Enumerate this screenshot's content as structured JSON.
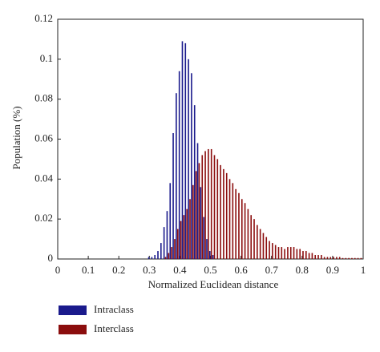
{
  "chart_data": {
    "type": "bar",
    "xlabel": "Normalized Euclidean distance",
    "ylabel": "Population (%)",
    "x": [
      0.3,
      0.31,
      0.32,
      0.33,
      0.34,
      0.35,
      0.36,
      0.37,
      0.38,
      0.39,
      0.4,
      0.41,
      0.42,
      0.43,
      0.44,
      0.45,
      0.46,
      0.47,
      0.48,
      0.49,
      0.5,
      0.51,
      0.52,
      0.53,
      0.54,
      0.55,
      0.56,
      0.57,
      0.58,
      0.59,
      0.6,
      0.61,
      0.62,
      0.63,
      0.64,
      0.65,
      0.66,
      0.67,
      0.68,
      0.69,
      0.7,
      0.71,
      0.72,
      0.73,
      0.74,
      0.75,
      0.76,
      0.77,
      0.78,
      0.79,
      0.8,
      0.81,
      0.82,
      0.83,
      0.84,
      0.85,
      0.86,
      0.87,
      0.88,
      0.89,
      0.9,
      0.91,
      0.92,
      0.93,
      0.94,
      0.95,
      0.96,
      0.97,
      0.98,
      0.99
    ],
    "series": [
      {
        "name": "Intraclass",
        "color": "#1a1a8c",
        "values": [
          0.001,
          0.001,
          0.002,
          0.004,
          0.008,
          0.016,
          0.024,
          0.038,
          0.063,
          0.083,
          0.094,
          0.109,
          0.108,
          0.1,
          0.093,
          0.077,
          0.058,
          0.036,
          0.021,
          0.01,
          0.004,
          0.002,
          0,
          0,
          0,
          0,
          0,
          0,
          0,
          0,
          0,
          0,
          0,
          0,
          0,
          0,
          0,
          0,
          0,
          0,
          0,
          0,
          0,
          0,
          0,
          0,
          0,
          0,
          0,
          0,
          0,
          0,
          0,
          0,
          0,
          0,
          0,
          0,
          0,
          0,
          0,
          0,
          0,
          0,
          0,
          0,
          0,
          0,
          0,
          0
        ]
      },
      {
        "name": "Interclass",
        "color": "#8b0d0d",
        "values": [
          0,
          0,
          0,
          0,
          0,
          0.001,
          0.003,
          0.006,
          0.01,
          0.015,
          0.019,
          0.022,
          0.025,
          0.03,
          0.037,
          0.044,
          0.048,
          0.052,
          0.054,
          0.055,
          0.055,
          0.052,
          0.05,
          0.047,
          0.045,
          0.043,
          0.04,
          0.038,
          0.035,
          0.033,
          0.03,
          0.028,
          0.025,
          0.022,
          0.02,
          0.017,
          0.015,
          0.013,
          0.011,
          0.009,
          0.008,
          0.007,
          0.006,
          0.006,
          0.005,
          0.006,
          0.006,
          0.006,
          0.005,
          0.005,
          0.004,
          0.004,
          0.003,
          0.003,
          0.002,
          0.002,
          0.002,
          0.001,
          0.001,
          0.001,
          0.001,
          0.001,
          0.001,
          0.0005,
          0.0005,
          0.0005,
          0.0005,
          0.0005,
          0.0005,
          0.0005
        ]
      }
    ],
    "xlim": [
      0,
      1
    ],
    "xticks": [
      0,
      0.1,
      0.2,
      0.3,
      0.4,
      0.5,
      0.6,
      0.7,
      0.8,
      0.9,
      1
    ],
    "ylim": [
      0,
      0.12
    ],
    "yticks": [
      0,
      0.02,
      0.04,
      0.06,
      0.08,
      0.1,
      0.12
    ],
    "grid": false
  }
}
